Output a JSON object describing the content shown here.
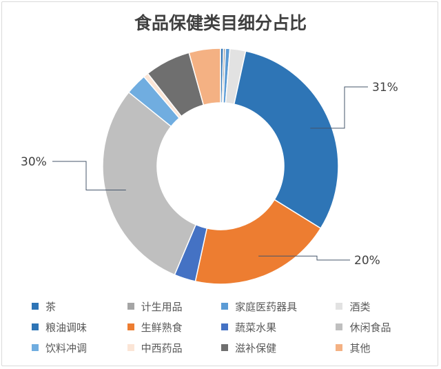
{
  "chart_data": {
    "type": "pie",
    "title": "食品保健类目细分占比",
    "donut": true,
    "categories": [
      "茶",
      "计生用品",
      "家庭医药器具",
      "酒类",
      "粮油调味",
      "生鲜熟食",
      "蔬菜水果",
      "休闲食品",
      "饮料冲调",
      "中西药品",
      "滋补保健",
      "其他"
    ],
    "values": [
      0.4,
      0.3,
      0.6,
      2.2,
      31,
      20,
      3,
      30,
      3,
      0.7,
      6.4,
      4.4
    ],
    "colors": [
      "#2e75b6",
      "#a5a5a5",
      "#5b9bd5",
      "#e2e2e2",
      "#2e75b6",
      "#ed7d31",
      "#4472c4",
      "#bfbfbf",
      "#70ade0",
      "#fbe5d6",
      "#6f6f6f",
      "#f4b183"
    ],
    "data_labels": [
      {
        "category": "粮油调味",
        "text": "31%"
      },
      {
        "category": "生鲜熟食",
        "text": "20%"
      },
      {
        "category": "休闲食品",
        "text": "30%"
      }
    ],
    "legend_position": "bottom"
  }
}
